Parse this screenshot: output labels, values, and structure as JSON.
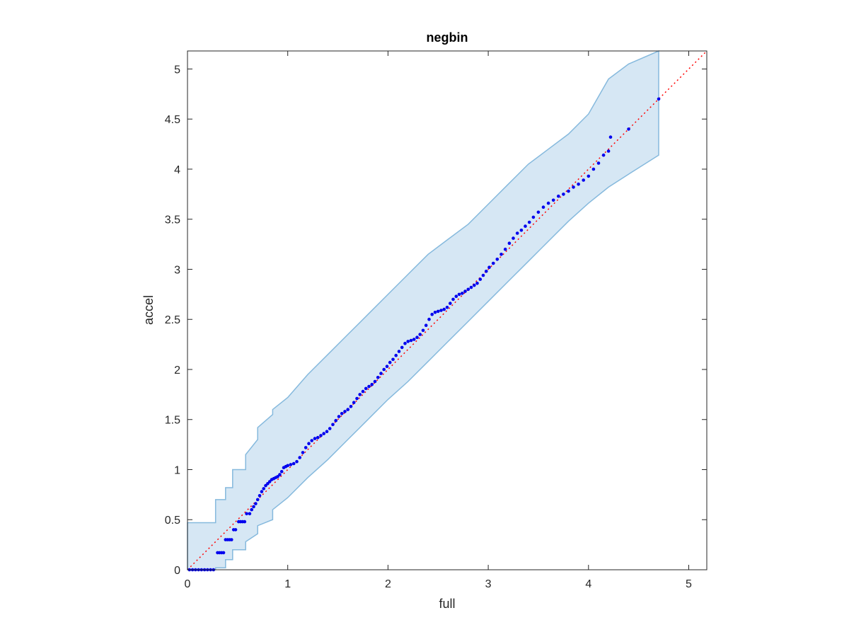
{
  "chart_data": {
    "type": "scatter",
    "title": "negbin",
    "xlabel": "full",
    "ylabel": "accel",
    "xlim": [
      0,
      5.18
    ],
    "ylim": [
      0,
      5.18
    ],
    "xticks": [
      "0",
      "1",
      "2",
      "3",
      "4",
      "5"
    ],
    "yticks": [
      "0",
      "0.5",
      "1",
      "1.5",
      "2",
      "2.5",
      "3",
      "3.5",
      "4",
      "4.5",
      "5"
    ],
    "grid": false,
    "colors": {
      "points": "#0000ee",
      "reference": "#ff0000",
      "band_fill": "#d6e7f4",
      "band_edge": "#85b9dd"
    },
    "reference_line": {
      "x": [
        0,
        5.18
      ],
      "y": [
        0,
        5.18
      ]
    },
    "band": {
      "x": [
        0,
        0.28,
        0.28,
        0.38,
        0.38,
        0.45,
        0.45,
        0.58,
        0.58,
        0.7,
        0.7,
        0.85,
        0.85,
        1.0,
        1.2,
        1.4,
        1.6,
        1.8,
        2.0,
        2.2,
        2.4,
        2.6,
        2.8,
        3.0,
        3.2,
        3.4,
        3.6,
        3.8,
        4.0,
        4.2,
        4.4,
        4.7
      ],
      "upper": [
        0.47,
        0.47,
        0.7,
        0.7,
        0.82,
        0.82,
        1.0,
        1.0,
        1.15,
        1.3,
        1.42,
        1.55,
        1.6,
        1.72,
        1.95,
        2.15,
        2.35,
        2.55,
        2.75,
        2.95,
        3.15,
        3.3,
        3.45,
        3.65,
        3.85,
        4.05,
        4.2,
        4.35,
        4.55,
        4.9,
        5.05,
        5.18
      ],
      "lower": [
        0.0,
        0.0,
        0.02,
        0.02,
        0.1,
        0.1,
        0.2,
        0.2,
        0.28,
        0.36,
        0.44,
        0.5,
        0.6,
        0.72,
        0.92,
        1.1,
        1.3,
        1.5,
        1.7,
        1.88,
        2.08,
        2.28,
        2.48,
        2.68,
        2.88,
        3.08,
        3.28,
        3.48,
        3.66,
        3.82,
        3.95,
        4.14
      ]
    },
    "points": {
      "x": [
        0.02,
        0.05,
        0.08,
        0.11,
        0.14,
        0.17,
        0.2,
        0.23,
        0.26,
        0.3,
        0.32,
        0.34,
        0.36,
        0.38,
        0.4,
        0.42,
        0.44,
        0.46,
        0.48,
        0.51,
        0.53,
        0.55,
        0.57,
        0.59,
        0.62,
        0.64,
        0.66,
        0.68,
        0.7,
        0.72,
        0.74,
        0.76,
        0.78,
        0.8,
        0.82,
        0.84,
        0.86,
        0.88,
        0.9,
        0.92,
        0.94,
        0.96,
        0.98,
        1.0,
        1.03,
        1.06,
        1.09,
        1.12,
        1.15,
        1.18,
        1.21,
        1.24,
        1.27,
        1.3,
        1.33,
        1.36,
        1.39,
        1.42,
        1.45,
        1.48,
        1.51,
        1.54,
        1.57,
        1.6,
        1.63,
        1.66,
        1.69,
        1.72,
        1.75,
        1.78,
        1.81,
        1.84,
        1.87,
        1.9,
        1.93,
        1.96,
        1.99,
        2.02,
        2.05,
        2.08,
        2.11,
        2.14,
        2.17,
        2.2,
        2.23,
        2.26,
        2.29,
        2.32,
        2.35,
        2.38,
        2.41,
        2.44,
        2.47,
        2.5,
        2.53,
        2.56,
        2.59,
        2.62,
        2.65,
        2.68,
        2.71,
        2.74,
        2.77,
        2.8,
        2.83,
        2.86,
        2.89,
        2.92,
        2.95,
        2.98,
        3.01,
        3.05,
        3.09,
        3.13,
        3.17,
        3.21,
        3.25,
        3.29,
        3.33,
        3.37,
        3.41,
        3.45,
        3.5,
        3.55,
        3.6,
        3.65,
        3.7,
        3.75,
        3.8,
        3.85,
        3.9,
        3.95,
        4.0,
        4.05,
        4.1,
        4.15,
        4.2,
        4.22,
        4.4,
        4.7
      ],
      "y": [
        0.0,
        0.0,
        0.0,
        0.0,
        0.0,
        0.0,
        0.0,
        0.0,
        0.0,
        0.17,
        0.17,
        0.17,
        0.17,
        0.3,
        0.3,
        0.3,
        0.3,
        0.4,
        0.4,
        0.48,
        0.48,
        0.48,
        0.48,
        0.56,
        0.56,
        0.6,
        0.63,
        0.66,
        0.7,
        0.74,
        0.78,
        0.81,
        0.84,
        0.86,
        0.88,
        0.9,
        0.91,
        0.92,
        0.93,
        0.95,
        0.98,
        1.02,
        1.03,
        1.04,
        1.05,
        1.06,
        1.08,
        1.12,
        1.17,
        1.22,
        1.26,
        1.29,
        1.31,
        1.32,
        1.34,
        1.36,
        1.38,
        1.41,
        1.45,
        1.49,
        1.53,
        1.56,
        1.58,
        1.6,
        1.63,
        1.67,
        1.71,
        1.75,
        1.78,
        1.81,
        1.83,
        1.85,
        1.88,
        1.92,
        1.96,
        2.0,
        2.03,
        2.07,
        2.1,
        2.14,
        2.18,
        2.22,
        2.26,
        2.28,
        2.29,
        2.3,
        2.32,
        2.35,
        2.39,
        2.44,
        2.5,
        2.55,
        2.57,
        2.58,
        2.59,
        2.6,
        2.62,
        2.66,
        2.7,
        2.73,
        2.75,
        2.76,
        2.78,
        2.8,
        2.82,
        2.84,
        2.86,
        2.9,
        2.94,
        2.98,
        3.02,
        3.06,
        3.1,
        3.15,
        3.2,
        3.26,
        3.31,
        3.36,
        3.39,
        3.43,
        3.47,
        3.52,
        3.57,
        3.62,
        3.66,
        3.69,
        3.73,
        3.75,
        3.78,
        3.82,
        3.85,
        3.89,
        3.93,
        4.0,
        4.06,
        4.14,
        4.18,
        4.32,
        4.4,
        4.7
      ]
    }
  }
}
